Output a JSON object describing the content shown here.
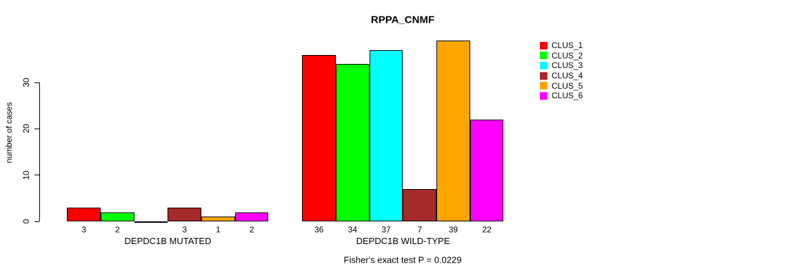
{
  "chart_data": {
    "type": "bar",
    "title": "RPPA_CNMF",
    "ylabel": "number of cases",
    "xlabel": "",
    "y_ticks": [
      0,
      10,
      20,
      30
    ],
    "ylim": [
      0,
      39
    ],
    "grid": false,
    "legend_position": "right",
    "categories": [
      "DEPDC1B MUTATED",
      "DEPDC1B WILD-TYPE"
    ],
    "series": [
      {
        "name": "CLUS_1",
        "color": "#FF0000",
        "values": [
          3,
          36
        ]
      },
      {
        "name": "CLUS_2",
        "color": "#00FF00",
        "values": [
          2,
          34
        ]
      },
      {
        "name": "CLUS_3",
        "color": "#00FFFF",
        "values": [
          0,
          37
        ]
      },
      {
        "name": "CLUS_4",
        "color": "#A52A2A",
        "values": [
          3,
          7
        ]
      },
      {
        "name": "CLUS_5",
        "color": "#FFA500",
        "values": [
          1,
          39
        ]
      },
      {
        "name": "CLUS_6",
        "color": "#FF00FF",
        "values": [
          2,
          22
        ]
      }
    ],
    "bar_value_labels": [
      [
        "3",
        "2",
        "",
        "3",
        "1",
        "2"
      ],
      [
        "36",
        "34",
        "37",
        "7",
        "39",
        "22"
      ]
    ],
    "annotation": "Fisher's exact test P = 0.0229"
  }
}
